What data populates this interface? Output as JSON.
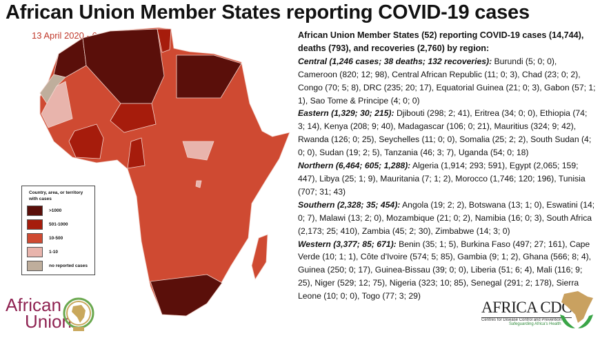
{
  "title": "African Union Member States reporting COVID-19 cases",
  "date": "13 April 2020 - 6pm EAT",
  "legend": {
    "title": "Country, area, or territory with cases",
    "items": [
      {
        "label": ">1000",
        "color": "#5a0f0a"
      },
      {
        "label": "501-1000",
        "color": "#a61c0c"
      },
      {
        "label": "10-500",
        "color": "#cf4a32"
      },
      {
        "label": "1-10",
        "color": "#e8b4ac"
      },
      {
        "label": "no reported cases",
        "color": "#bfae9c"
      }
    ]
  },
  "summary": {
    "heading": "African Union Member States (52) reporting COVID-19 cases (14,744), deaths (793), and recoveries (2,760) by region:",
    "regions": [
      {
        "label": "Central (1,246 cases; 38 deaths; 132 recoveries):",
        "text": " Burundi (5; 0; 0), Cameroon (820; 12; 98), Central African Republic (11; 0; 3), Chad (23; 0; 2), Congo (70; 5; 8), DRC (235; 20; 17), Equatorial Guinea (21; 0; 3), Gabon (57; 1; 1), Sao Tome & Principe (4; 0; 0)"
      },
      {
        "label": "Eastern (1,329; 30; 215):",
        "text": " Djibouti (298; 2; 41), Eritrea (34; 0; 0), Ethiopia (74; 3; 14), Kenya (208; 9; 40), Madagascar (106; 0; 21), Mauritius (324; 9; 42), Rwanda (126; 0; 25), Seychelles (11; 0; 0), Somalia (25; 2; 2), South Sudan (4; 0; 0), Sudan (19; 2; 5), Tanzania (46; 3; 7), Uganda (54; 0; 18)"
      },
      {
        "label": "Northern (6,464; 605; 1,288):",
        "text": " Algeria (1,914; 293; 591), Egypt (2,065; 159; 447), Libya (25; 1; 9), Mauritania (7; 1; 2), Morocco (1,746; 120; 196), Tunisia (707; 31; 43)"
      },
      {
        "label": "Southern (2,328; 35; 454):",
        "text": " Angola (19; 2; 2), Botswana (13; 1; 0), Eswatini (14; 0; 7), Malawi (13; 2; 0), Mozambique (21; 0; 2),  Namibia (16; 0; 3), South Africa (2,173; 25; 410), Zambia (45; 2; 30), Zimbabwe (14; 3; 0)"
      },
      {
        "label": "Western (3,377; 85; 671):",
        "text": " Benin (35; 1; 5), Burkina Faso (497; 27; 161), Cape Verde (10; 1; 1), Côte d'Ivoire (574; 5; 85), Gambia (9; 1; 2), Ghana (566; 8; 4), Guinea (250; 0; 17), Guinea-Bissau (39; 0; 0), Liberia (51; 6; 4), Mali (116; 9; 25), Niger (529; 12; 75), Nigeria (323; 10; 85), Senegal (291; 2; 178), Sierra Leone (10; 0; 0), Togo (77; 3; 29)"
      }
    ]
  },
  "logos": {
    "au_line1": "African",
    "au_line2": "Union",
    "cdc_name": "AFRICA CDC",
    "cdc_sub": "Centres for Disease Control and Prevention",
    "cdc_tagline": "Safeguarding Africa's Health"
  }
}
